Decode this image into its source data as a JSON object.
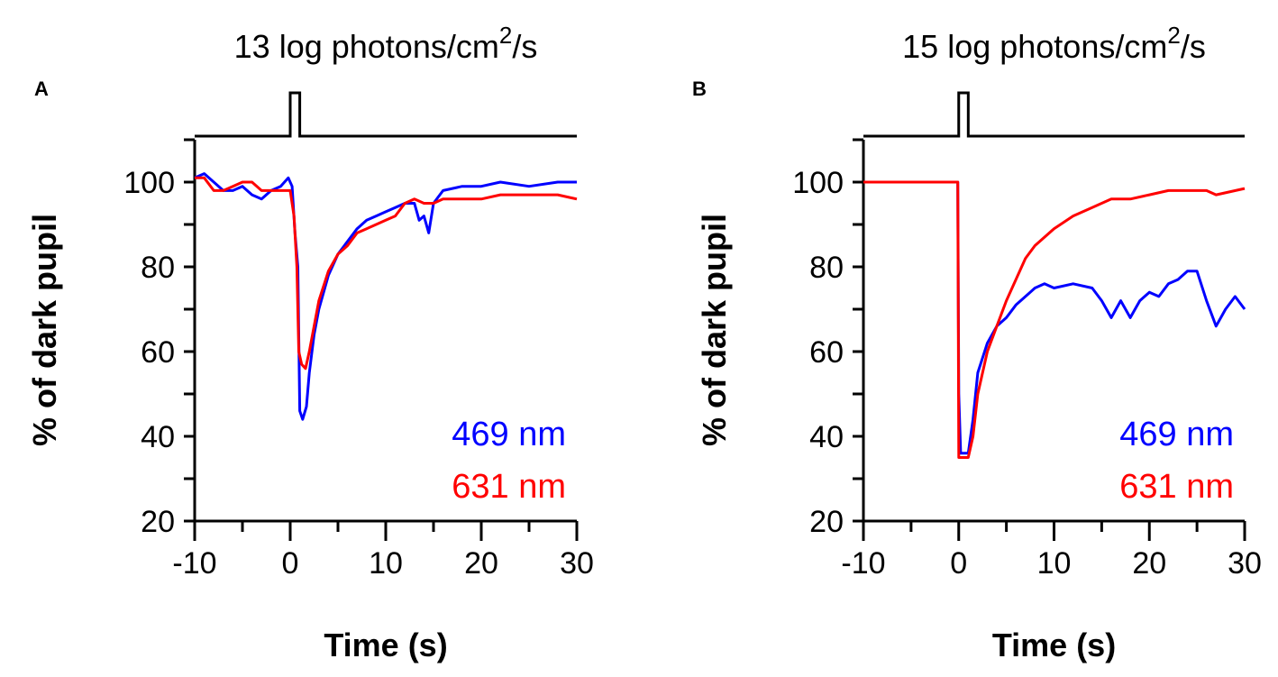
{
  "chart_data": [
    {
      "type": "line",
      "panel_label": "A",
      "title": "13 log photons/cm",
      "title_sup": "2",
      "title_suffix": "/s",
      "xlabel": "Time (s)",
      "ylabel": "% of dark pupil",
      "xlim": [
        -10,
        30
      ],
      "ylim": [
        20,
        110
      ],
      "xticks": [
        -10,
        0,
        10,
        20,
        30
      ],
      "yticks": [
        20,
        40,
        60,
        80,
        100
      ],
      "stimulus": {
        "on": 0,
        "off": 1
      },
      "legend": "bottom-right",
      "series": [
        {
          "name": "469 nm",
          "color": "#0000ff",
          "x": [
            -10,
            -9,
            -8,
            -7,
            -6,
            -5,
            -4,
            -3,
            -2,
            -1,
            -0.2,
            0.2,
            0.5,
            0.8,
            1.0,
            1.3,
            1.7,
            2,
            2.5,
            3,
            4,
            5,
            6,
            7,
            8,
            9,
            10,
            11,
            12,
            13,
            13.5,
            14,
            14.5,
            15,
            16,
            18,
            20,
            22,
            25,
            28,
            30
          ],
          "y": [
            101,
            102,
            100,
            98,
            98,
            99,
            97,
            96,
            98,
            99,
            101,
            99,
            88,
            80,
            46,
            44,
            47,
            55,
            64,
            70,
            78,
            83,
            86,
            89,
            91,
            92,
            93,
            94,
            95,
            95,
            91,
            92,
            88,
            95,
            98,
            99,
            99,
            100,
            99,
            100,
            100
          ]
        },
        {
          "name": "631 nm",
          "color": "#ff0000",
          "x": [
            -10,
            -9,
            -8,
            -7,
            -6,
            -5,
            -4,
            -3,
            -2,
            -1,
            0,
            0.4,
            0.7,
            0.9,
            1.2,
            1.6,
            2,
            2.5,
            3,
            4,
            5,
            6,
            7,
            8,
            9,
            10,
            11,
            12,
            13,
            14,
            15,
            16,
            18,
            20,
            22,
            25,
            28,
            30
          ],
          "y": [
            101,
            101,
            98,
            98,
            99,
            100,
            100,
            98,
            98,
            98,
            98,
            92,
            80,
            60,
            57,
            56,
            60,
            66,
            72,
            79,
            83,
            85,
            88,
            89,
            90,
            91,
            92,
            95,
            96,
            95,
            95,
            96,
            96,
            96,
            97,
            97,
            97,
            96
          ]
        }
      ]
    },
    {
      "type": "line",
      "panel_label": "B",
      "title": "15 log photons/cm",
      "title_sup": "2",
      "title_suffix": "/s",
      "xlabel": "Time (s)",
      "ylabel": "% of dark pupil",
      "xlim": [
        -10,
        30
      ],
      "ylim": [
        20,
        110
      ],
      "xticks": [
        -10,
        0,
        10,
        20,
        30
      ],
      "yticks": [
        20,
        40,
        60,
        80,
        100
      ],
      "stimulus": {
        "on": 0,
        "off": 1
      },
      "legend": "bottom-right",
      "series": [
        {
          "name": "469 nm",
          "color": "#0000ff",
          "x": [
            -10,
            -5,
            -0.1,
            0,
            0.2,
            1,
            1.5,
            2,
            3,
            4,
            5,
            6,
            7,
            8,
            9,
            10,
            12,
            14,
            15,
            16,
            17,
            18,
            19,
            20,
            21,
            22,
            23,
            24,
            25,
            26,
            27,
            28,
            29,
            30
          ],
          "y": [
            100,
            100,
            100,
            50,
            36,
            36,
            44,
            55,
            62,
            66,
            68,
            71,
            73,
            75,
            76,
            75,
            76,
            75,
            72,
            68,
            72,
            68,
            72,
            74,
            73,
            76,
            77,
            79,
            79,
            72,
            66,
            70,
            73,
            70
          ]
        },
        {
          "name": "631 nm",
          "color": "#ff0000",
          "x": [
            -10,
            -5,
            -0.1,
            0,
            1,
            1.5,
            2,
            3,
            4,
            5,
            6,
            7,
            8,
            10,
            12,
            14,
            16,
            18,
            20,
            22,
            24,
            26,
            27,
            30
          ],
          "y": [
            100,
            100,
            100,
            35,
            35,
            40,
            50,
            60,
            66,
            72,
            77,
            82,
            85,
            89,
            92,
            94,
            96,
            96,
            97,
            98,
            98,
            98,
            97,
            98.5
          ]
        }
      ]
    }
  ]
}
